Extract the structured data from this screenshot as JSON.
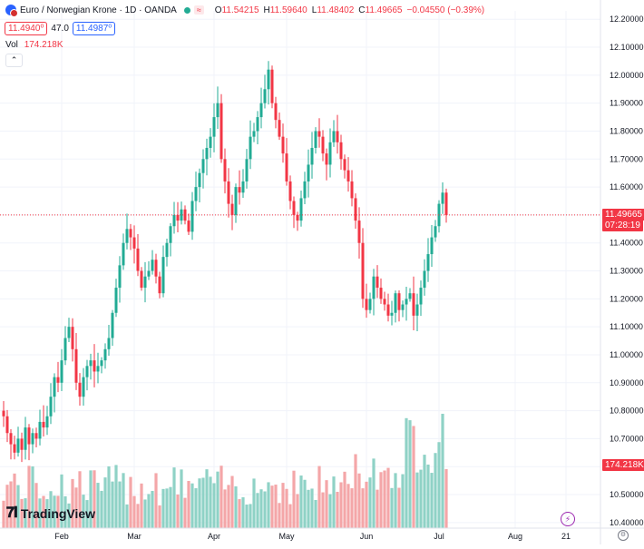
{
  "header": {
    "title": "Euro / Norwegian Krone · 1D · OANDA",
    "badge": "≈",
    "ohlc": [
      {
        "k": "O",
        "v": "11.54215"
      },
      {
        "k": "H",
        "v": "11.59640"
      },
      {
        "k": "L",
        "v": "11.48402"
      },
      {
        "k": "C",
        "v": "11.49665"
      },
      {
        "k": "",
        "v": "−0.04550 (−0.39%)"
      }
    ],
    "sell_price": "11.4940⁰",
    "spread": "47.0",
    "buy_price": "11.4987⁰",
    "volume_label": "Vol",
    "volume_value": "174.218K"
  },
  "price_tag": "11.49665",
  "countdown": "07:28:19",
  "volume_tag": "174.218K",
  "collapse_icon": "chevron-up-icon",
  "logo_text": "TradingView",
  "colors": {
    "up": "#22ab94",
    "down": "#f23645",
    "vol_up": "#8fd2c6",
    "vol_down": "#f4a6a8"
  },
  "chart_data": {
    "type": "candlestick",
    "title": "Euro / Norwegian Krone · 1D · OANDA",
    "ylim": [
      10.38,
      12.23
    ],
    "yticks": [
      "12.20000",
      "12.10000",
      "12.00000",
      "11.90000",
      "11.80000",
      "11.70000",
      "11.60000",
      "11.50000",
      "11.40000",
      "11.30000",
      "11.20000",
      "11.10000",
      "11.00000",
      "10.90000",
      "10.80000",
      "10.70000",
      "10.60000",
      "10.50000",
      "10.40000"
    ],
    "xticks": [
      {
        "label": "Feb",
        "i": 16
      },
      {
        "label": "Mar",
        "i": 36
      },
      {
        "label": "Apr",
        "i": 58
      },
      {
        "label": "May",
        "i": 78
      },
      {
        "label": "Jun",
        "i": 100
      },
      {
        "label": "Jul",
        "i": 120
      },
      {
        "label": "Aug",
        "i": 141
      },
      {
        "label": "21",
        "i": 155
      }
    ],
    "closes": [
      10.78,
      10.72,
      10.68,
      10.65,
      10.7,
      10.66,
      10.74,
      10.68,
      10.72,
      10.7,
      10.76,
      10.74,
      10.78,
      10.85,
      10.92,
      10.9,
      10.98,
      11.06,
      11.1,
      11.02,
      10.9,
      10.85,
      10.92,
      10.96,
      10.98,
      10.94,
      10.96,
      10.98,
      11.02,
      11.06,
      11.15,
      11.24,
      11.32,
      11.4,
      11.45,
      11.42,
      11.38,
      11.3,
      11.24,
      11.28,
      11.3,
      11.34,
      11.28,
      11.22,
      11.35,
      11.4,
      11.46,
      11.5,
      11.48,
      11.52,
      11.48,
      11.44,
      11.55,
      11.6,
      11.65,
      11.7,
      11.74,
      11.78,
      11.85,
      11.9,
      11.7,
      11.62,
      11.54,
      11.5,
      11.6,
      11.58,
      11.62,
      11.7,
      11.78,
      11.8,
      11.85,
      11.9,
      11.95,
      12.02,
      11.9,
      11.84,
      11.78,
      11.72,
      11.62,
      11.55,
      11.5,
      11.48,
      11.56,
      11.62,
      11.68,
      11.74,
      11.8,
      11.78,
      11.72,
      11.68,
      11.76,
      11.8,
      11.76,
      11.7,
      11.66,
      11.62,
      11.56,
      11.48,
      11.4,
      11.2,
      11.16,
      11.2,
      11.28,
      11.24,
      11.2,
      11.18,
      11.14,
      11.15,
      11.22,
      11.16,
      11.18,
      11.2,
      11.22,
      11.14,
      11.18,
      11.24,
      11.3,
      11.36,
      11.42,
      11.46,
      11.54,
      11.58,
      11.5
    ],
    "volume_last": 174.218,
    "volume_unit": "K"
  }
}
